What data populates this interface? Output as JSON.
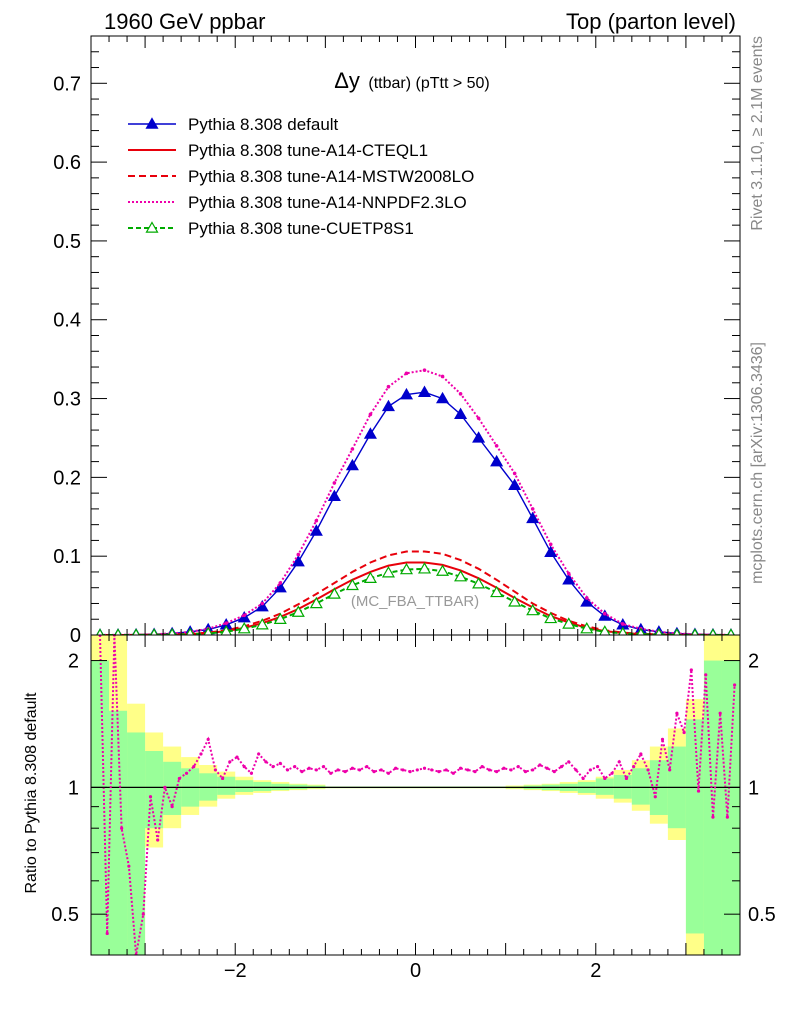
{
  "header": {
    "left": "1960 GeV ppbar",
    "right": "Top (parton level)"
  },
  "side": {
    "rivet": "Rivet 3.1.10, ≥ 2.1M events",
    "mcplots": "mcplots.cern.ch [arXiv:1306.3436]"
  },
  "chart_data": [
    {
      "type": "line",
      "title_main": "Δy",
      "title_sub": "(ttbar) (pTtt > 50)",
      "watermark": "(MC_FBA_TTBAR)",
      "xlim": [
        -3.6,
        3.6
      ],
      "ylim": [
        0,
        0.76
      ],
      "xticks": [
        -2,
        0,
        2
      ],
      "xtick_labels": [
        "−2",
        "0",
        "2"
      ],
      "yticks": [
        0,
        0.1,
        0.2,
        0.3,
        0.4,
        0.5,
        0.6,
        0.7
      ],
      "ytick_labels": [
        "0",
        "0.1",
        "0.2",
        "0.3",
        "0.4",
        "0.5",
        "0.6",
        "0.7"
      ],
      "x": [
        -3.5,
        -3.3,
        -3.1,
        -2.9,
        -2.7,
        -2.5,
        -2.3,
        -2.1,
        -1.9,
        -1.7,
        -1.5,
        -1.3,
        -1.1,
        -0.9,
        -0.7,
        -0.5,
        -0.3,
        -0.1,
        0.1,
        0.3,
        0.5,
        0.7,
        0.9,
        1.1,
        1.3,
        1.5,
        1.7,
        1.9,
        2.1,
        2.3,
        2.5,
        2.7,
        2.9,
        3.1,
        3.3,
        3.5
      ],
      "series": [
        {
          "name": "Pythia 8.308 default",
          "color": "#0000cc",
          "dash": "",
          "marker": "triangle-filled",
          "values": [
            0.0002,
            0.0003,
            0.0005,
            0.001,
            0.002,
            0.004,
            0.007,
            0.013,
            0.022,
            0.036,
            0.06,
            0.093,
            0.132,
            0.176,
            0.215,
            0.255,
            0.29,
            0.305,
            0.308,
            0.3,
            0.28,
            0.25,
            0.22,
            0.19,
            0.148,
            0.105,
            0.07,
            0.042,
            0.024,
            0.013,
            0.007,
            0.004,
            0.002,
            0.001,
            0.0005,
            0.0003
          ]
        },
        {
          "name": "Pythia 8.308 tune-A14-CTEQL1",
          "color": "#e8000b",
          "dash": "",
          "marker": "none",
          "values": [
            0,
            0,
            0.0001,
            0.0003,
            0.0006,
            0.0012,
            0.0025,
            0.005,
            0.009,
            0.015,
            0.023,
            0.033,
            0.045,
            0.058,
            0.07,
            0.08,
            0.088,
            0.092,
            0.092,
            0.089,
            0.082,
            0.072,
            0.06,
            0.047,
            0.035,
            0.024,
            0.016,
            0.009,
            0.005,
            0.0025,
            0.0012,
            0.0006,
            0.0003,
            0.0001,
            0,
            0
          ]
        },
        {
          "name": "Pythia 8.308 tune-A14-MSTW2008LO",
          "color": "#e8000b",
          "dash": "7,4",
          "marker": "none",
          "values": [
            0,
            0,
            0.0001,
            0.0003,
            0.0007,
            0.0015,
            0.003,
            0.006,
            0.011,
            0.018,
            0.027,
            0.039,
            0.052,
            0.066,
            0.08,
            0.092,
            0.101,
            0.106,
            0.106,
            0.103,
            0.095,
            0.084,
            0.07,
            0.055,
            0.04,
            0.028,
            0.018,
            0.011,
            0.006,
            0.003,
            0.0015,
            0.0007,
            0.0003,
            0.0001,
            0,
            0
          ]
        },
        {
          "name": "Pythia 8.308 tune-A14-NNPDF2.3LO",
          "color": "#ee00aa",
          "dash": "2,2",
          "marker": "dot",
          "values": [
            0.0001,
            0.0002,
            0.0004,
            0.001,
            0.002,
            0.004,
            0.008,
            0.015,
            0.025,
            0.04,
            0.066,
            0.102,
            0.145,
            0.193,
            0.236,
            0.28,
            0.315,
            0.332,
            0.336,
            0.328,
            0.306,
            0.275,
            0.24,
            0.205,
            0.16,
            0.115,
            0.078,
            0.047,
            0.027,
            0.014,
            0.008,
            0.004,
            0.002,
            0.001,
            0.0004,
            0.0002
          ]
        },
        {
          "name": "Pythia 8.308 tune-CUETP8S1",
          "color": "#00aa00",
          "dash": "5,3",
          "marker": "triangle-open",
          "values": [
            0,
            0,
            0.0001,
            0.0002,
            0.0005,
            0.001,
            0.002,
            0.004,
            0.008,
            0.013,
            0.02,
            0.029,
            0.04,
            0.052,
            0.063,
            0.072,
            0.079,
            0.083,
            0.084,
            0.081,
            0.074,
            0.065,
            0.054,
            0.042,
            0.031,
            0.021,
            0.014,
            0.008,
            0.004,
            0.002,
            0.001,
            0.0005,
            0.0002,
            0.0001,
            0,
            0
          ]
        }
      ]
    },
    {
      "type": "line",
      "ylabel": "Ratio to Pythia 8.308 default",
      "ylim": [
        0.4,
        2.3
      ],
      "log_y": true,
      "yticks": [
        0.5,
        1,
        2
      ],
      "ytick_labels": [
        "0.5",
        "1",
        "2"
      ],
      "band_edges": [
        -3.6,
        -3.4,
        -3.2,
        -3.0,
        -2.8,
        -2.6,
        -2.4,
        -2.2,
        -2.0,
        -1.8,
        -1.6,
        -1.4,
        -1.2,
        -1.0,
        1.0,
        1.2,
        1.4,
        1.6,
        1.8,
        2.0,
        2.2,
        2.4,
        2.6,
        2.8,
        3.0,
        3.2,
        3.4,
        3.6
      ],
      "bands": [
        {
          "name": "stat-syst",
          "color": "#ffff88",
          "lo": [
            0.35,
            0.35,
            0.35,
            0.72,
            0.8,
            0.86,
            0.9,
            0.94,
            0.96,
            0.97,
            0.98,
            0.985,
            0.99,
            0.995,
            0.99,
            0.985,
            0.98,
            0.97,
            0.96,
            0.94,
            0.92,
            0.88,
            0.82,
            0.75,
            0.35,
            0.35,
            0.35
          ],
          "hi": [
            2.5,
            2.5,
            1.58,
            1.35,
            1.25,
            1.18,
            1.13,
            1.09,
            1.06,
            1.04,
            1.03,
            1.02,
            1.015,
            1.005,
            1.01,
            1.015,
            1.02,
            1.03,
            1.04,
            1.06,
            1.1,
            1.16,
            1.25,
            1.38,
            1.62,
            2.5,
            2.5
          ]
        },
        {
          "name": "stat",
          "color": "#99ff99",
          "lo": [
            0.35,
            0.35,
            0.35,
            0.8,
            0.86,
            0.9,
            0.93,
            0.96,
            0.975,
            0.98,
            0.985,
            0.99,
            0.995,
            0.998,
            0.995,
            0.99,
            0.985,
            0.98,
            0.97,
            0.96,
            0.94,
            0.91,
            0.86,
            0.8,
            0.45,
            0.35,
            0.35
          ],
          "hi": [
            2.0,
            1.52,
            1.35,
            1.22,
            1.15,
            1.11,
            1.08,
            1.06,
            1.04,
            1.03,
            1.02,
            1.015,
            1.01,
            1.004,
            1.005,
            1.01,
            1.015,
            1.02,
            1.03,
            1.05,
            1.07,
            1.11,
            1.16,
            1.25,
            1.45,
            2.0,
            2.0
          ]
        }
      ],
      "ratio_series": {
        "name": "Pythia 8.308 tune-A14-NNPDF2.3LO",
        "color": "#ee00aa",
        "x": [
          -3.5,
          -3.42,
          -3.34,
          -3.26,
          -3.18,
          -3.1,
          -3.02,
          -2.94,
          -2.86,
          -2.78,
          -2.7,
          -2.62,
          -2.54,
          -2.46,
          -2.38,
          -2.3,
          -2.22,
          -2.14,
          -2.06,
          -1.98,
          -1.9,
          -1.82,
          -1.74,
          -1.66,
          -1.58,
          -1.5,
          -1.42,
          -1.34,
          -1.26,
          -1.18,
          -1.1,
          -1.02,
          -0.94,
          -0.86,
          -0.78,
          -0.7,
          -0.62,
          -0.54,
          -0.46,
          -0.38,
          -0.3,
          -0.22,
          -0.14,
          -0.06,
          0.02,
          0.1,
          0.18,
          0.26,
          0.34,
          0.42,
          0.5,
          0.58,
          0.66,
          0.74,
          0.82,
          0.9,
          0.98,
          1.06,
          1.14,
          1.22,
          1.3,
          1.38,
          1.46,
          1.54,
          1.62,
          1.7,
          1.78,
          1.86,
          1.94,
          2.02,
          2.1,
          2.18,
          2.26,
          2.34,
          2.42,
          2.5,
          2.58,
          2.66,
          2.74,
          2.82,
          2.9,
          2.98,
          3.06,
          3.14,
          3.22,
          3.3,
          3.38,
          3.46,
          3.54
        ],
        "values": [
          2.3,
          0.45,
          2.3,
          0.8,
          0.65,
          0.4,
          0.5,
          0.95,
          0.75,
          1.0,
          0.9,
          1.05,
          1.08,
          1.12,
          1.2,
          1.3,
          1.1,
          1.05,
          1.15,
          1.18,
          1.12,
          1.08,
          1.2,
          1.15,
          1.12,
          1.14,
          1.1,
          1.12,
          1.09,
          1.11,
          1.1,
          1.12,
          1.08,
          1.1,
          1.09,
          1.11,
          1.1,
          1.12,
          1.09,
          1.1,
          1.08,
          1.11,
          1.1,
          1.09,
          1.1,
          1.11,
          1.1,
          1.09,
          1.1,
          1.08,
          1.11,
          1.1,
          1.09,
          1.12,
          1.1,
          1.09,
          1.11,
          1.1,
          1.12,
          1.09,
          1.1,
          1.13,
          1.11,
          1.09,
          1.12,
          1.15,
          1.1,
          1.05,
          1.1,
          1.12,
          1.05,
          1.08,
          1.15,
          1.05,
          1.12,
          1.2,
          1.1,
          0.95,
          1.3,
          1.1,
          1.5,
          1.35,
          1.9,
          0.98,
          1.85,
          0.85,
          1.5,
          0.85,
          1.75
        ]
      }
    }
  ]
}
